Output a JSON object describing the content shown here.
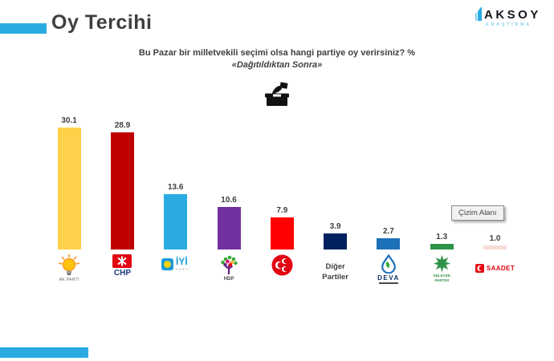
{
  "header": {
    "title": "Oy Tercihi"
  },
  "brand": {
    "name": "AKSOY",
    "tagline": "ARAŞTIRMA"
  },
  "question": {
    "line1": "Bu Pazar bir milletvekili seçimi olsa hangi partiye oy verirsiniz? %",
    "line2": "«Dağıtıldıktan Sonra»"
  },
  "tooltip": {
    "label": "Çizim Alanı"
  },
  "colors": {
    "accent": "#29ABE2",
    "title_text": "#3F3F3F",
    "value_label": "#404040"
  },
  "chart_data": {
    "type": "bar",
    "title": "Oy Tercihi",
    "question": "Bu Pazar bir milletvekili seçimi olsa hangi partiye oy verirsiniz? %",
    "note": "«Dağıtıldıktan Sonra»",
    "categories": [
      "AK Parti",
      "CHP",
      "İYİ Parti",
      "HDP",
      "MHP",
      "Diğer Partiler",
      "DEVA",
      "Gelecek Partisi",
      "Saadet Partisi"
    ],
    "values": [
      30.1,
      28.9,
      13.6,
      10.6,
      7.9,
      3.9,
      2.7,
      1.3,
      1.0
    ],
    "bar_colors": [
      "#FFD04A",
      "#C00000",
      "#29ABE2",
      "#7030A0",
      "#FF0000",
      "#002060",
      "#1D71B8",
      "#2E9348",
      "#F7DCD6"
    ],
    "ylim": [
      0,
      32
    ],
    "grid": false,
    "legend": "none",
    "data_labels": true,
    "x_axis": "party logos"
  },
  "parties": [
    {
      "id": "akparti",
      "name": "AK Parti",
      "value": "30.1",
      "color": "#FFD04A",
      "icon": "akparti-lightbulb-icon",
      "caption_lines": [
        "AK PARTİ"
      ]
    },
    {
      "id": "chp",
      "name": "CHP",
      "value": "28.9",
      "color": "#C00000",
      "icon": "chp-sun-icon",
      "caption_lines": [
        "CHP"
      ]
    },
    {
      "id": "iyi",
      "name": "İYİ Parti",
      "value": "13.6",
      "color": "#29ABE2",
      "icon": "iyi-sun-icon",
      "layout": "row",
      "caption_lines": [
        "İYİ"
      ],
      "caption2": "PARTİ"
    },
    {
      "id": "hdp",
      "name": "HDP",
      "value": "10.6",
      "color": "#7030A0",
      "icon": "hdp-tree-icon",
      "caption_lines": [
        "HDP"
      ]
    },
    {
      "id": "mhp",
      "name": "MHP",
      "value": "7.9",
      "color": "#FF0000",
      "icon": "mhp-three-crescents-icon"
    },
    {
      "id": "diger",
      "name": "Diğer Partiler",
      "value": "3.9",
      "color": "#002060",
      "icon": "none",
      "caption_lines": [
        "Diğer",
        "Partiler"
      ]
    },
    {
      "id": "deva",
      "name": "DEVA",
      "value": "2.7",
      "color": "#1D71B8",
      "icon": "deva-waterdrop-icon",
      "caption_lines": [
        "DEVA"
      ],
      "underline": true
    },
    {
      "id": "gelecek",
      "name": "Gelecek Partisi",
      "value": "1.3",
      "color": "#2E9348",
      "icon": "gelecek-leaf-icon",
      "caption_lines": [
        "GELECEK",
        "PARTİSİ"
      ]
    },
    {
      "id": "saadet",
      "name": "Saadet Partisi",
      "value": "1.0",
      "color": "#F7DCD6",
      "icon": "saadet-crescent-icon",
      "layout": "row",
      "caption_lines": [
        "SAADET"
      ]
    }
  ]
}
